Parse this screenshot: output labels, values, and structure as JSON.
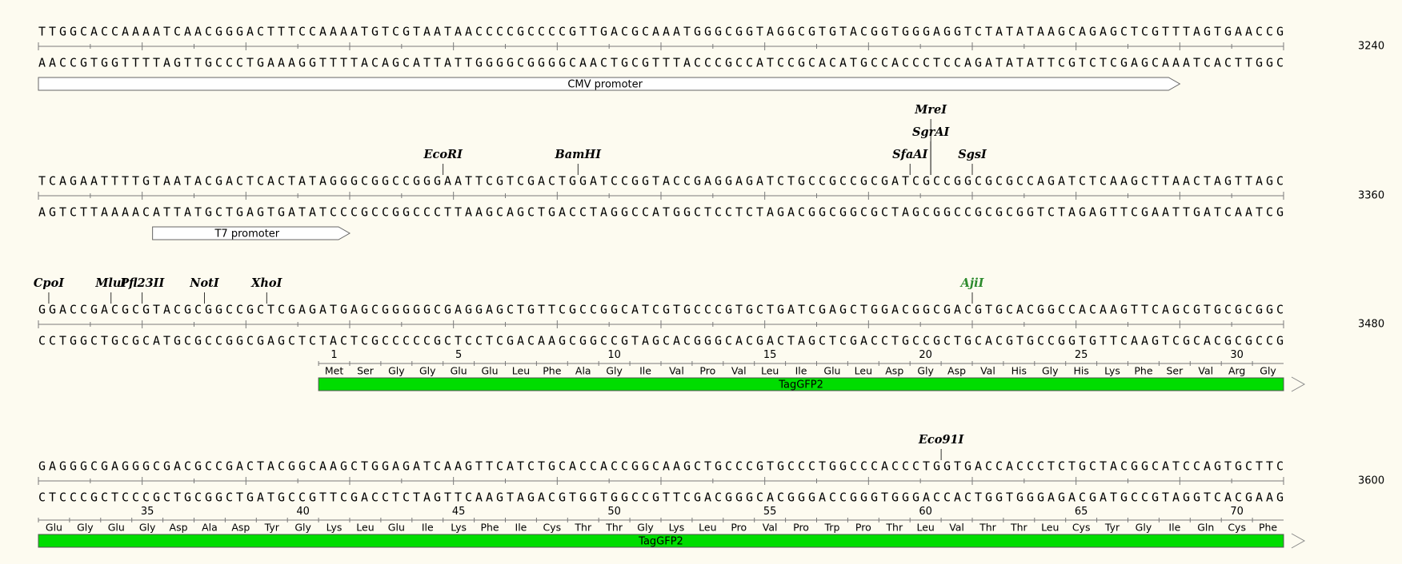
{
  "colors": {
    "background": "#fdfbf0",
    "ruler": "#7a7a7a",
    "feature_fill_green": "#00dd00",
    "feature_fill_white": "#ffffff",
    "enzyme_green": "#2e8b2e"
  },
  "rows": [
    {
      "top": "TTGGCACCAAAATCAACGGGACTTTCCAAAATGTCGTAATAACCCCGCCCCGTTGACGCAAATGGGCGGTAGGCGTGTACGGTGGGAGGTCTATATAAGCAGAGCTCGTTTAGTGAACCG",
      "bottom": "AACCGTGGTTTTAGTTGCCCTGAAAGGTTTTACAGCATTATTGGGGCGGGGCAACTGCGTTTACCCGCCATCCGCACATGCCACCCTCCAGATATATTCGTCTCGAGCAAATCACTTGGC",
      "position": "3240",
      "enzymes": [],
      "features": [
        {
          "name": "CMV promoter",
          "start": 0,
          "end": 110,
          "fill": "#ffffff",
          "arrow": "right"
        }
      ],
      "translation": null
    },
    {
      "top": "TCAGAATTTTGTAATACGACTCACTATAGGGCGGCCGGGAATTCGTCGACTGGATCCGGTACCGAGGAGATCTGCCGCCGCGATCGCCGGCGCGCCAGATCTCAAGCTTAACTAGTTAGC",
      "bottom": "AGTCTTAAAACATTATGCTGAGTGATATCCCGCCGGCCCTTAAGCAGCTGACCTAGGCCATGGCTCCTCTAGACGGCGGCGCTAGCGGCCGCGCGGTCTAGAGTTCGAATTGATCAATCG",
      "position": "3360",
      "enzymes": [
        {
          "name": "EcoRI",
          "site": 39,
          "level": 1,
          "color": "#000000"
        },
        {
          "name": "BamHI",
          "site": 52,
          "level": 1,
          "color": "#000000"
        },
        {
          "name": "SfaAI",
          "site": 84,
          "level": 1,
          "color": "#000000"
        },
        {
          "name": "MreI",
          "site": 86,
          "level": 3,
          "color": "#000000"
        },
        {
          "name": "SgrAI",
          "site": 86,
          "level": 2,
          "color": "#000000"
        },
        {
          "name": "SgsI",
          "site": 90,
          "level": 1,
          "color": "#000000"
        }
      ],
      "features": [
        {
          "name": "T7 promoter",
          "start": 11,
          "end": 30,
          "fill": "#ffffff",
          "arrow": "right"
        }
      ],
      "translation": null
    },
    {
      "top": "GGACCGACGCGTACGCGGCCGCTCGAGATGAGCGGGGGCGAGGAGCTGTTCGCCGGCATCGTGCCCGTGCTGATCGAGCTGGACGGCGACGTGCACGGCCACAAGTTCAGCGTGCGCGGC",
      "bottom": "CCTGGCTGCGCATGCGCCGGCGAGCTCTACTCGCCCCCGCTCCTCGACAAGCGGCCGTAGCACGGGCACGACTAGCTCGACCTGCCGCTGCACGTGCCGGTGTTCAAGTCGCACGCGCCG",
      "position": "3480",
      "enzymes": [
        {
          "name": "CpoI",
          "site": 1,
          "level": 1,
          "color": "#000000"
        },
        {
          "name": "MluI",
          "site": 7,
          "level": 1,
          "color": "#000000"
        },
        {
          "name": "Pfl23II",
          "site": 10,
          "level": 1,
          "color": "#000000"
        },
        {
          "name": "NotI",
          "site": 16,
          "level": 1,
          "color": "#000000"
        },
        {
          "name": "XhoI",
          "site": 22,
          "level": 1,
          "color": "#000000"
        },
        {
          "name": "AjiI",
          "site": 90,
          "level": 1,
          "color": "#2e8b2e"
        }
      ],
      "features": [
        {
          "name": "TagGFP2",
          "start": 27,
          "end": 120,
          "fill": "#00dd00",
          "arrow": "right-open"
        }
      ],
      "translation": {
        "start": 27,
        "numbers": [
          "1",
          "5",
          "10",
          "15",
          "20",
          "25",
          "30"
        ],
        "number_codons": [
          0,
          4,
          9,
          14,
          19,
          24,
          29
        ],
        "aa": [
          "Met",
          "Ser",
          "Gly",
          "Gly",
          "Glu",
          "Glu",
          "Leu",
          "Phe",
          "Ala",
          "Gly",
          "Ile",
          "Val",
          "Pro",
          "Val",
          "Leu",
          "Ile",
          "Glu",
          "Leu",
          "Asp",
          "Gly",
          "Asp",
          "Val",
          "His",
          "Gly",
          "His",
          "Lys",
          "Phe",
          "Ser",
          "Val",
          "Arg",
          "Gly"
        ]
      }
    },
    {
      "top": "GAGGGCGAGGGCGACGCCGACTACGGCAAGCTGGAGATCAAGTTCATCTGCACCACCGGCAAGCTGCCCGTGCCCTGGCCCACCCTGGTGACCACCCTCTGCTACGGCATCCAGTGCTTC",
      "bottom": "CTCCCGCTCCCGCTGCGGCTGATGCCGTTCGACCTCTAGTTCAAGTAGACGTGGTGGCCGTTCGACGGGCACGGGACCGGGTGGGACCACTGGTGGGAGACGATGCCGTAGGTCACGAAG",
      "position": "3600",
      "enzymes": [
        {
          "name": "Eco91I",
          "site": 87,
          "level": 1,
          "color": "#000000"
        }
      ],
      "features": [
        {
          "name": "TagGFP2",
          "start": 0,
          "end": 120,
          "fill": "#00dd00",
          "arrow": "right-open"
        }
      ],
      "translation": {
        "start": 0,
        "numbers": [
          "35",
          "40",
          "45",
          "50",
          "55",
          "60",
          "65",
          "70"
        ],
        "number_codons": [
          3,
          8,
          13,
          18,
          23,
          28,
          33,
          38
        ],
        "aa": [
          "Glu",
          "Gly",
          "Glu",
          "Gly",
          "Asp",
          "Ala",
          "Asp",
          "Tyr",
          "Gly",
          "Lys",
          "Leu",
          "Glu",
          "Ile",
          "Lys",
          "Phe",
          "Ile",
          "Cys",
          "Thr",
          "Thr",
          "Gly",
          "Lys",
          "Leu",
          "Pro",
          "Val",
          "Pro",
          "Trp",
          "Pro",
          "Thr",
          "Leu",
          "Val",
          "Thr",
          "Thr",
          "Leu",
          "Cys",
          "Tyr",
          "Gly",
          "Ile",
          "Gln",
          "Cys",
          "Phe"
        ]
      }
    }
  ]
}
